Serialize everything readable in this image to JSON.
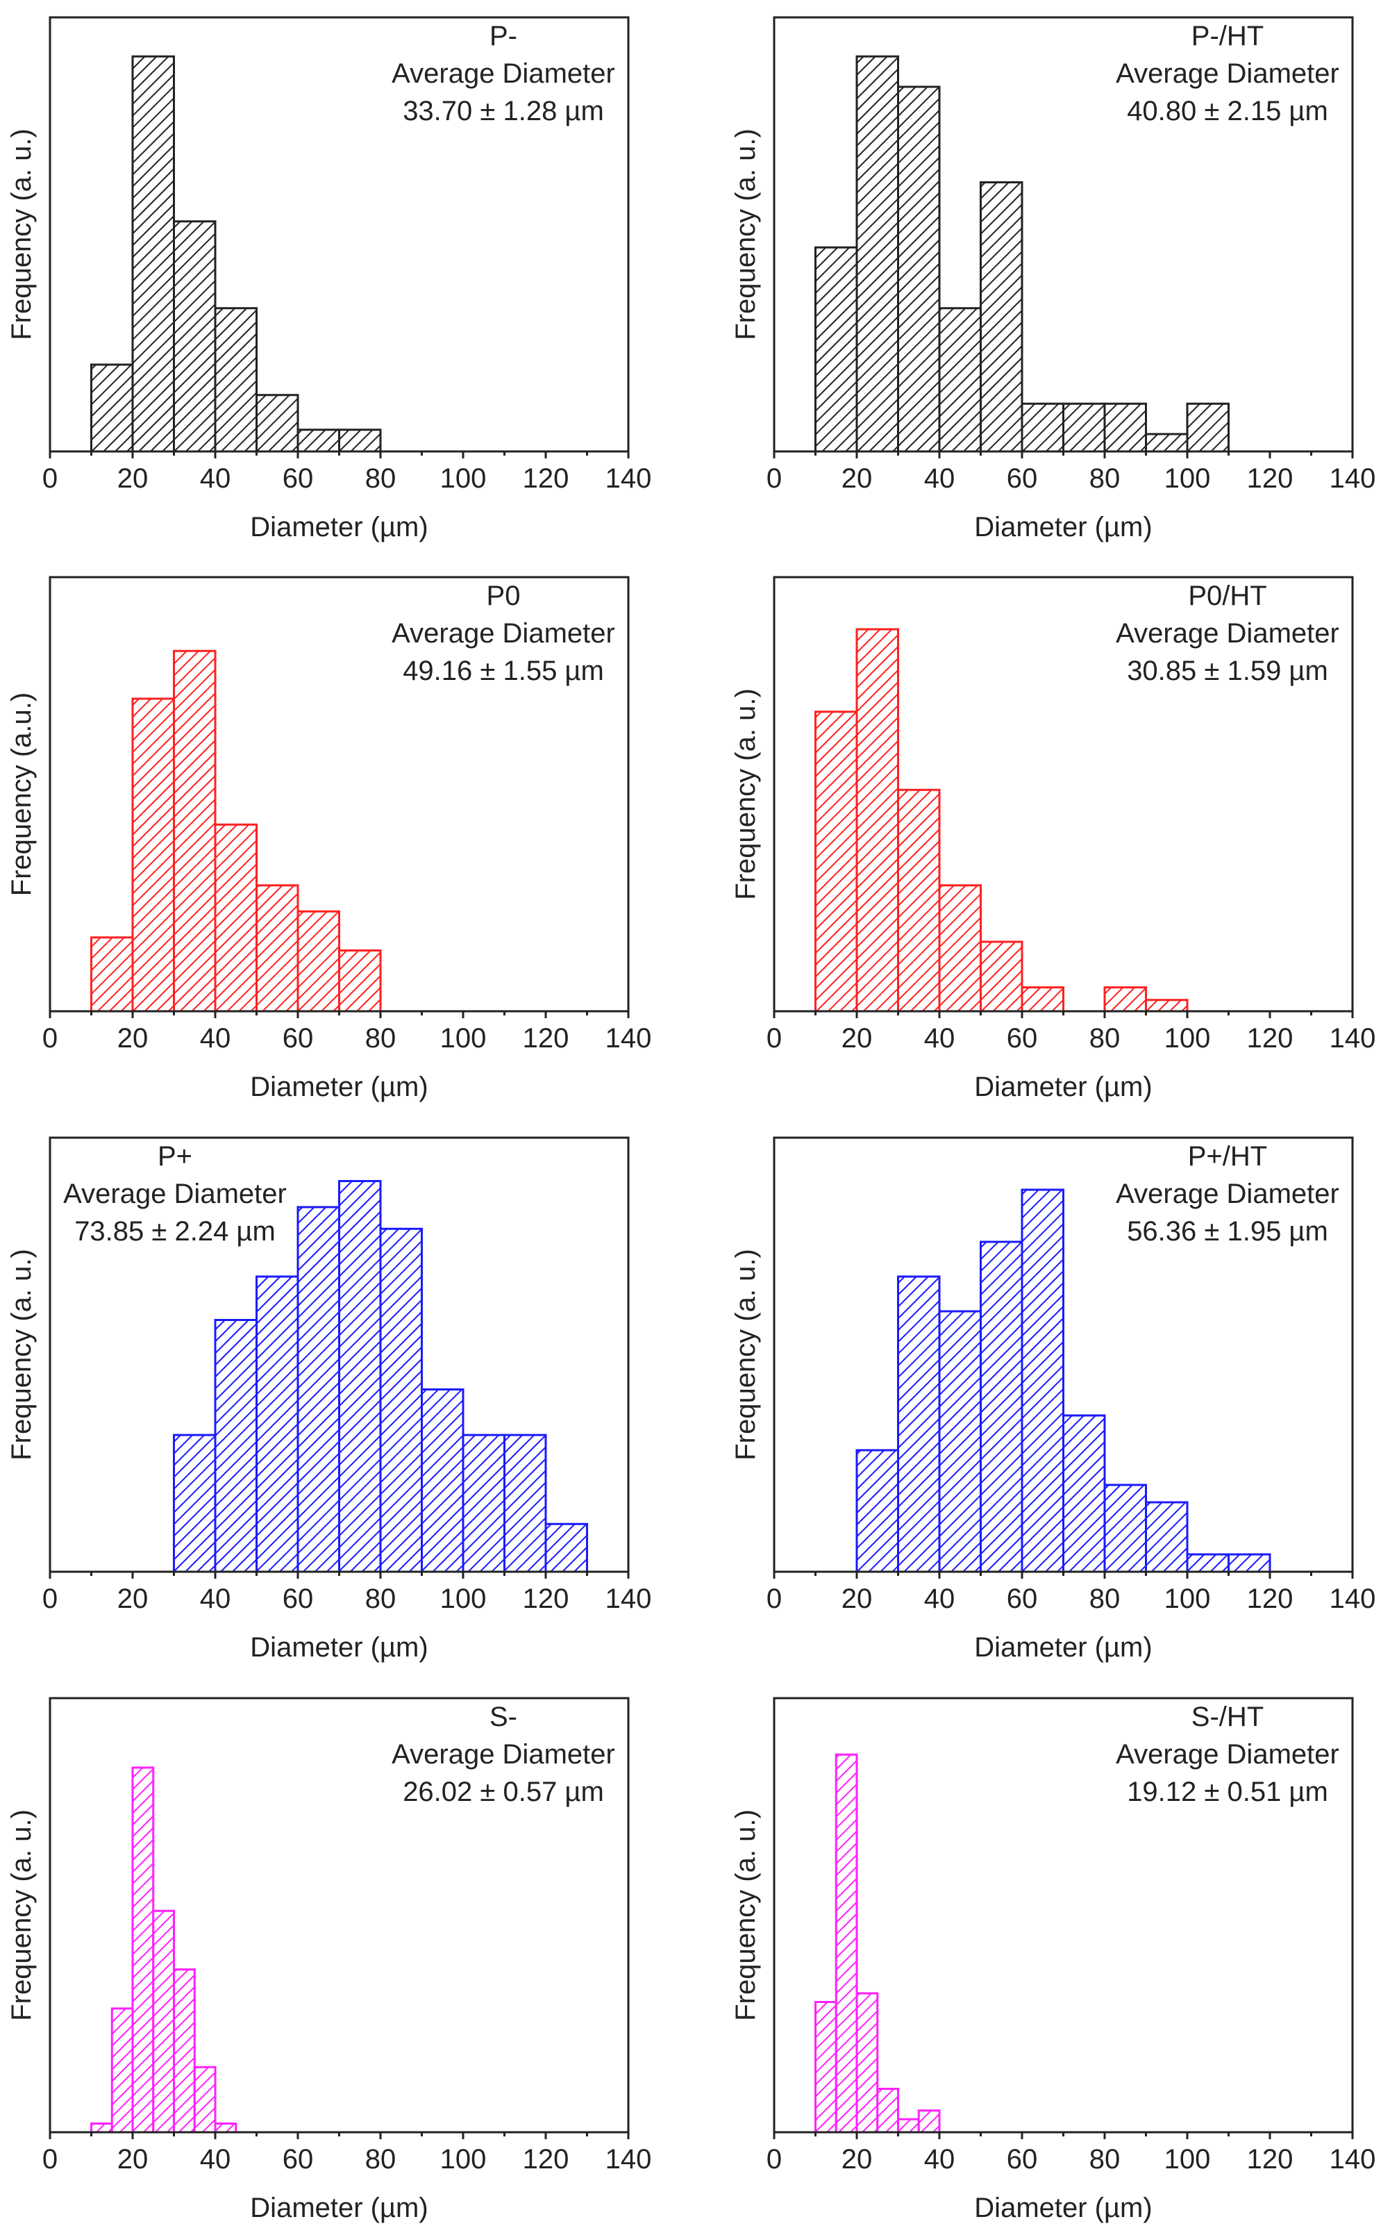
{
  "chart_data": [
    {
      "type": "bar",
      "title": "P-",
      "annotation_line1": "Average Diameter",
      "annotation_line2": "33.70 ± 1.28 µm",
      "annotation_align": "top-right",
      "color": "#222222",
      "xlabel": "Diameter (µm)",
      "ylabel": "Frequency (a. u.)",
      "xlim": [
        0,
        140
      ],
      "ylim": [
        0,
        100
      ],
      "xticks": [
        "0",
        "20",
        "40",
        "60",
        "80",
        "100",
        "120",
        "140"
      ],
      "bin_width": 10,
      "bins": [
        10,
        20,
        30,
        40,
        50,
        60,
        70
      ],
      "values": [
        20,
        91,
        53,
        33,
        13,
        5,
        5
      ]
    },
    {
      "type": "bar",
      "title": "P-/HT",
      "annotation_line1": "Average Diameter",
      "annotation_line2": "40.80 ± 2.15 µm",
      "annotation_align": "top-right",
      "color": "#222222",
      "xlabel": "Diameter (µm)",
      "ylabel": "Frequency (a. u.)",
      "xlim": [
        0,
        140
      ],
      "ylim": [
        0,
        100
      ],
      "xticks": [
        "0",
        "20",
        "40",
        "60",
        "80",
        "100",
        "120",
        "140"
      ],
      "bin_width": 10,
      "bins": [
        10,
        20,
        30,
        40,
        50,
        60,
        70,
        80,
        90,
        100
      ],
      "values": [
        47,
        91,
        84,
        33,
        62,
        11,
        11,
        11,
        4,
        11
      ]
    },
    {
      "type": "bar",
      "title": "P0",
      "annotation_line1": "Average Diameter",
      "annotation_line2": "49.16 ± 1.55 µm",
      "annotation_align": "top-right",
      "color": "#ff2020",
      "xlabel": "Diameter (µm)",
      "ylabel": "Frequency (a.u.)",
      "xlim": [
        0,
        140
      ],
      "ylim": [
        0,
        100
      ],
      "xticks": [
        "0",
        "20",
        "40",
        "60",
        "80",
        "100",
        "120",
        "140"
      ],
      "bin_width": 10,
      "bins": [
        10,
        20,
        30,
        40,
        50,
        60,
        70
      ],
      "values": [
        17,
        72,
        83,
        43,
        29,
        23,
        14
      ]
    },
    {
      "type": "bar",
      "title": "P0/HT",
      "annotation_line1": "Average Diameter",
      "annotation_line2": "30.85 ± 1.59 µm",
      "annotation_align": "top-right",
      "color": "#ff2020",
      "xlabel": "Diameter (µm)",
      "ylabel": "Frequency (a. u.)",
      "xlim": [
        0,
        140
      ],
      "ylim": [
        0,
        100
      ],
      "xticks": [
        "0",
        "20",
        "40",
        "60",
        "80",
        "100",
        "120",
        "140"
      ],
      "bin_width": 10,
      "bins": [
        10,
        20,
        30,
        40,
        50,
        60,
        80,
        90
      ],
      "values": [
        69,
        88,
        51,
        29,
        16,
        5.5,
        5.5,
        2.6
      ]
    },
    {
      "type": "bar",
      "title": "P+",
      "annotation_line1": "Average Diameter",
      "annotation_line2": "73.85 ± 2.24 µm",
      "annotation_align": "top-left",
      "color": "#1a1aff",
      "xlabel": "Diameter (µm)",
      "ylabel": "Frequency (a. u.)",
      "xlim": [
        0,
        140
      ],
      "ylim": [
        0,
        100
      ],
      "xticks": [
        "0",
        "20",
        "40",
        "60",
        "80",
        "100",
        "120",
        "140"
      ],
      "bin_width": 10,
      "bins": [
        30,
        40,
        50,
        60,
        70,
        80,
        90,
        100,
        110,
        120
      ],
      "values": [
        31.5,
        58,
        68,
        84,
        90,
        79,
        42,
        31.5,
        31.5,
        11
      ]
    },
    {
      "type": "bar",
      "title": "P+/HT",
      "annotation_line1": "Average Diameter",
      "annotation_line2": "56.36 ± 1.95 µm",
      "annotation_align": "top-right",
      "color": "#1a1aff",
      "xlabel": "Diameter (µm)",
      "ylabel": "Frequency (a. u.)",
      "xlim": [
        0,
        140
      ],
      "ylim": [
        0,
        100
      ],
      "xticks": [
        "0",
        "20",
        "40",
        "60",
        "80",
        "100",
        "120",
        "140"
      ],
      "bin_width": 10,
      "bins": [
        20,
        30,
        40,
        50,
        60,
        70,
        80,
        90,
        100,
        110
      ],
      "values": [
        28,
        68,
        60,
        76,
        88,
        36,
        20,
        16,
        4,
        4
      ]
    },
    {
      "type": "bar",
      "title": "S-",
      "annotation_line1": "Average Diameter",
      "annotation_line2": "26.02 ± 0.57 µm",
      "annotation_align": "top-right",
      "color": "#ff20ff",
      "xlabel": "Diameter (µm)",
      "ylabel": "Frequency (a. u.)",
      "xlim": [
        0,
        140
      ],
      "ylim": [
        0,
        100
      ],
      "xticks": [
        "0",
        "20",
        "40",
        "60",
        "80",
        "100",
        "120",
        "140"
      ],
      "bin_width": 5,
      "bins": [
        10,
        15,
        20,
        25,
        30,
        35,
        40
      ],
      "values": [
        2,
        28.5,
        84,
        51,
        37.5,
        15,
        2
      ]
    },
    {
      "type": "bar",
      "title": "S-/HT",
      "annotation_line1": "Average Diameter",
      "annotation_line2": "19.12 ± 0.51 µm",
      "annotation_align": "top-right",
      "color": "#ff20ff",
      "xlabel": "Diameter (µm)",
      "ylabel": "Frequency (a. u.)",
      "xlim": [
        0,
        140
      ],
      "ylim": [
        0,
        100
      ],
      "xticks": [
        "0",
        "20",
        "40",
        "60",
        "80",
        "100",
        "120",
        "140"
      ],
      "bin_width": 5,
      "bins": [
        10,
        15,
        20,
        25,
        30,
        35
      ],
      "values": [
        30,
        87,
        32,
        10,
        3,
        5
      ]
    }
  ]
}
